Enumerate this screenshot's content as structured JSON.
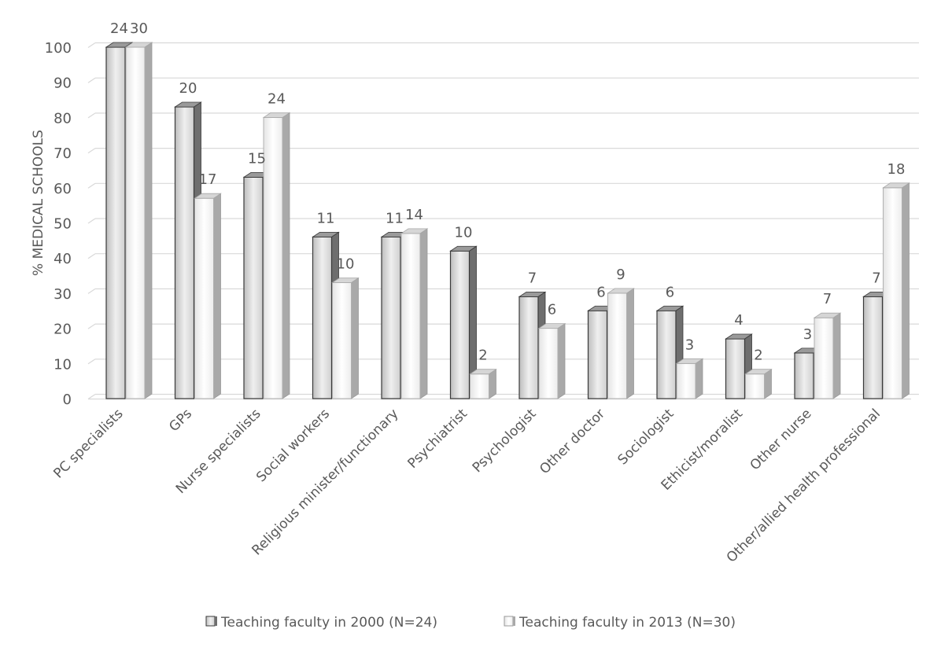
{
  "chart_data": {
    "type": "bar",
    "title": "",
    "xlabel": "",
    "ylabel": "% MEDICAL SCHOOLS",
    "ylim": [
      0,
      100
    ],
    "yticks": [
      0,
      10,
      20,
      30,
      40,
      50,
      60,
      70,
      80,
      90,
      100
    ],
    "grid": true,
    "legend_position": "bottom",
    "categories": [
      "PC specialists",
      "GPs",
      "Nurse specialists",
      "Social workers",
      "Religious minister/functionary",
      "Psychiatrist",
      "Psychologist",
      "Other doctor",
      "Sociologist",
      "Ethicist/moralist",
      "Other nurse",
      "Other/allied health professional"
    ],
    "series": [
      {
        "name": "Teaching faculty in 2000 (N=24)",
        "values": [
          100,
          83,
          63,
          46,
          46,
          42,
          29,
          25,
          25,
          17,
          13,
          29
        ],
        "data_labels": [
          "24",
          "20",
          "15",
          "11",
          "11",
          "10",
          "7",
          "6",
          "6",
          "4",
          "3",
          "7"
        ],
        "color": "#d0d0d0",
        "side_color": "#6e6e6e"
      },
      {
        "name": "Teaching faculty in 2013 (N=30)",
        "values": [
          100,
          57,
          80,
          33,
          47,
          7,
          20,
          30,
          10,
          7,
          23,
          60
        ],
        "data_labels": [
          "30",
          "17",
          "24",
          "10",
          "14",
          "2",
          "6",
          "9",
          "3",
          "2",
          "7",
          "18"
        ],
        "color": "#f4f4f4",
        "side_color": "#a9a9a9"
      }
    ]
  }
}
